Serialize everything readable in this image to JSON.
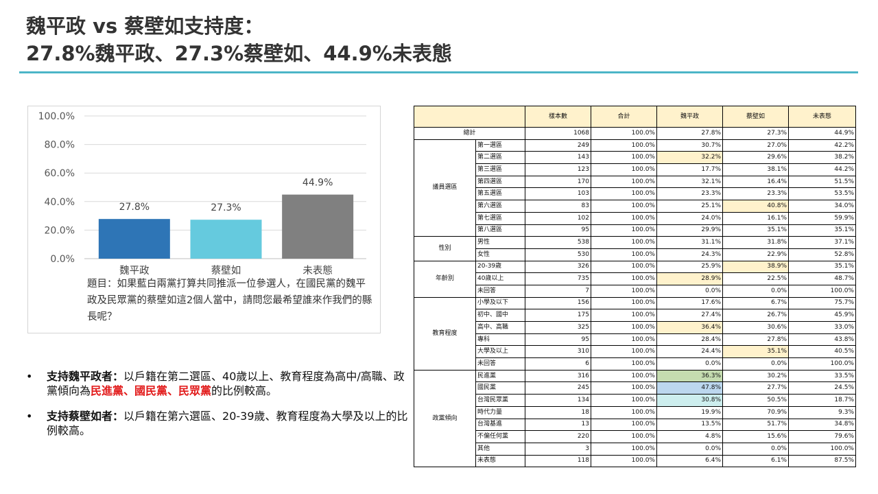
{
  "title_line1": "魏平政 vs 蔡壁如支持度：",
  "title_line2": "27.8%魏平政、27.3%蔡壁如、44.9%未表態",
  "chart_data": {
    "type": "bar",
    "categories": [
      "魏平政",
      "蔡壁如",
      "未表態"
    ],
    "values": [
      27.8,
      27.3,
      44.9
    ],
    "value_labels": [
      "27.8%",
      "27.3%",
      "44.9%"
    ],
    "colors": [
      "#2e75b6",
      "#65cade",
      "#808080"
    ],
    "yticks": [
      "0.0%",
      "20.0%",
      "40.0%",
      "60.0%",
      "80.0%",
      "100.0%"
    ],
    "ylim": [
      0,
      100
    ],
    "grid": true
  },
  "question": "題目：如果藍白兩黨打算共同推派一位參選人，在國民黨的魏平政及民眾黨的蔡壁如這2個人當中，請問您最希望誰來作我們的縣長呢？",
  "bullets": [
    {
      "dot": "•",
      "label": "支持魏平政者：",
      "text_a": "以戶籍在第二選區、40歲以上、教育程度為高中/高職、政黨傾向為",
      "red": "民進黨、國民黨、民眾黨",
      "text_b": "的比例較高。"
    },
    {
      "dot": "•",
      "label": "支持蔡壁如者：",
      "text_a": "以戶籍在第六選區、20-39歲、教育程度為大學及以上的比例較高。",
      "red": "",
      "text_b": ""
    }
  ],
  "table": {
    "headers": [
      "",
      "樣本數",
      "合計",
      "魏平政",
      "蔡壁如",
      "未表態"
    ],
    "total": {
      "label": "總計",
      "values": [
        "1068",
        "100.0%",
        "27.8%",
        "27.3%",
        "44.9%"
      ]
    },
    "groups": [
      {
        "name": "議員選區",
        "rows": [
          {
            "label": "第一選區",
            "values": [
              "249",
              "100.0%",
              "30.7%",
              "27.0%",
              "42.2%"
            ]
          },
          {
            "label": "第二選區",
            "values": [
              "143",
              "100.0%",
              "32.2%",
              "29.6%",
              "38.2%"
            ],
            "hl": {
              "2": "y"
            }
          },
          {
            "label": "第三選區",
            "values": [
              "123",
              "100.0%",
              "17.7%",
              "38.1%",
              "44.2%"
            ]
          },
          {
            "label": "第四選區",
            "values": [
              "170",
              "100.0%",
              "32.1%",
              "16.4%",
              "51.5%"
            ]
          },
          {
            "label": "第五選區",
            "values": [
              "103",
              "100.0%",
              "23.3%",
              "23.3%",
              "53.5%"
            ]
          },
          {
            "label": "第六選區",
            "values": [
              "83",
              "100.0%",
              "25.1%",
              "40.8%",
              "34.0%"
            ],
            "hl": {
              "3": "y"
            }
          },
          {
            "label": "第七選區",
            "values": [
              "102",
              "100.0%",
              "24.0%",
              "16.1%",
              "59.9%"
            ]
          },
          {
            "label": "第八選區",
            "values": [
              "95",
              "100.0%",
              "29.9%",
              "35.1%",
              "35.1%"
            ]
          }
        ]
      },
      {
        "name": "性別",
        "rows": [
          {
            "label": "男性",
            "values": [
              "538",
              "100.0%",
              "31.1%",
              "31.8%",
              "37.1%"
            ]
          },
          {
            "label": "女性",
            "values": [
              "530",
              "100.0%",
              "24.3%",
              "22.9%",
              "52.8%"
            ]
          }
        ]
      },
      {
        "name": "年齡別",
        "rows": [
          {
            "label": "20-39歲",
            "values": [
              "326",
              "100.0%",
              "25.9%",
              "38.9%",
              "35.1%"
            ],
            "hl": {
              "3": "y"
            }
          },
          {
            "label": "40歲以上",
            "values": [
              "735",
              "100.0%",
              "28.9%",
              "22.5%",
              "48.7%"
            ],
            "hl": {
              "2": "y"
            }
          },
          {
            "label": "未回答",
            "values": [
              "7",
              "100.0%",
              "0.0%",
              "0.0%",
              "100.0%"
            ]
          }
        ]
      },
      {
        "name": "教育程度",
        "rows": [
          {
            "label": "小學及以下",
            "values": [
              "156",
              "100.0%",
              "17.6%",
              "6.7%",
              "75.7%"
            ]
          },
          {
            "label": "初中、國中",
            "values": [
              "175",
              "100.0%",
              "27.4%",
              "26.7%",
              "45.9%"
            ]
          },
          {
            "label": "高中、高職",
            "values": [
              "325",
              "100.0%",
              "36.4%",
              "30.6%",
              "33.0%"
            ],
            "hl": {
              "2": "y"
            }
          },
          {
            "label": "專科",
            "values": [
              "95",
              "100.0%",
              "28.4%",
              "27.8%",
              "43.8%"
            ]
          },
          {
            "label": "大學及以上",
            "values": [
              "310",
              "100.0%",
              "24.4%",
              "35.1%",
              "40.5%"
            ],
            "hl": {
              "3": "y"
            }
          },
          {
            "label": "未回答",
            "values": [
              "6",
              "100.0%",
              "0.0%",
              "0.0%",
              "100.0%"
            ]
          }
        ]
      },
      {
        "name": "政黨傾向",
        "rows": [
          {
            "label": "民進黨",
            "values": [
              "316",
              "100.0%",
              "36.3%",
              "30.2%",
              "33.5%"
            ],
            "hl": {
              "2": "g"
            }
          },
          {
            "label": "國民黨",
            "values": [
              "245",
              "100.0%",
              "47.8%",
              "27.7%",
              "24.5%"
            ],
            "hl": {
              "2": "b"
            }
          },
          {
            "label": "台灣民眾黨",
            "values": [
              "134",
              "100.0%",
              "30.8%",
              "50.5%",
              "18.7%"
            ],
            "hl": {
              "2": "t"
            }
          },
          {
            "label": "時代力量",
            "values": [
              "18",
              "100.0%",
              "19.9%",
              "70.9%",
              "9.3%"
            ]
          },
          {
            "label": "台灣基進",
            "values": [
              "13",
              "100.0%",
              "13.5%",
              "51.7%",
              "34.8%"
            ]
          },
          {
            "label": "不偏任何黨",
            "values": [
              "220",
              "100.0%",
              "4.8%",
              "15.6%",
              "79.6%"
            ]
          },
          {
            "label": "其他",
            "values": [
              "3",
              "100.0%",
              "0.0%",
              "0.0%",
              "100.0%"
            ]
          },
          {
            "label": "未表態",
            "values": [
              "118",
              "100.0%",
              "6.4%",
              "6.1%",
              "87.5%"
            ]
          }
        ]
      }
    ]
  }
}
